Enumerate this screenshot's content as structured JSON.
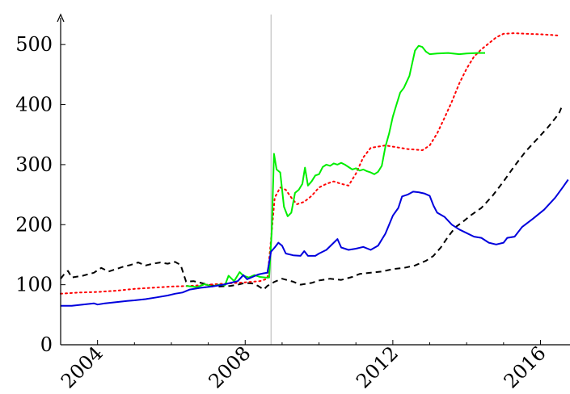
{
  "chart_data": {
    "type": "line",
    "title": "",
    "xlabel": "",
    "ylabel": "",
    "xlim": [
      2003.0,
      2016.8
    ],
    "ylim": [
      0,
      550
    ],
    "x_ticks": [
      2004,
      2008,
      2012,
      2016
    ],
    "y_ticks": [
      0,
      100,
      200,
      300,
      400,
      500
    ],
    "grid": false,
    "reference_line_x": 2008.7,
    "series": [
      {
        "color": "#000000",
        "style": "dashed",
        "points": [
          [
            2003.0,
            110
          ],
          [
            2003.1,
            118
          ],
          [
            2003.2,
            123
          ],
          [
            2003.3,
            112
          ],
          [
            2003.6,
            115
          ],
          [
            2003.9,
            120
          ],
          [
            2004.1,
            128
          ],
          [
            2004.3,
            122
          ],
          [
            2004.5,
            126
          ],
          [
            2004.7,
            130
          ],
          [
            2004.9,
            133
          ],
          [
            2005.1,
            137
          ],
          [
            2005.3,
            132
          ],
          [
            2005.5,
            135
          ],
          [
            2005.7,
            137
          ],
          [
            2005.9,
            135
          ],
          [
            2006.1,
            138
          ],
          [
            2006.25,
            133
          ],
          [
            2006.4,
            105
          ],
          [
            2006.6,
            106
          ],
          [
            2006.8,
            103
          ],
          [
            2007.0,
            100
          ],
          [
            2007.3,
            97
          ],
          [
            2007.6,
            98
          ],
          [
            2007.8,
            100
          ],
          [
            2008.0,
            103
          ],
          [
            2008.2,
            102
          ],
          [
            2008.35,
            98
          ],
          [
            2008.5,
            92
          ],
          [
            2008.6,
            98
          ],
          [
            2008.8,
            105
          ],
          [
            2009.0,
            110
          ],
          [
            2009.3,
            105
          ],
          [
            2009.5,
            100
          ],
          [
            2009.8,
            103
          ],
          [
            2010.0,
            107
          ],
          [
            2010.3,
            110
          ],
          [
            2010.6,
            108
          ],
          [
            2010.9,
            113
          ],
          [
            2011.1,
            118
          ],
          [
            2011.4,
            120
          ],
          [
            2011.7,
            122
          ],
          [
            2012.0,
            126
          ],
          [
            2012.3,
            128
          ],
          [
            2012.6,
            132
          ],
          [
            2012.9,
            140
          ],
          [
            2013.1,
            148
          ],
          [
            2013.3,
            162
          ],
          [
            2013.5,
            180
          ],
          [
            2013.7,
            196
          ],
          [
            2013.9,
            205
          ],
          [
            2014.1,
            215
          ],
          [
            2014.4,
            228
          ],
          [
            2014.7,
            248
          ],
          [
            2015.0,
            272
          ],
          [
            2015.3,
            298
          ],
          [
            2015.6,
            322
          ],
          [
            2015.9,
            342
          ],
          [
            2016.2,
            362
          ],
          [
            2016.5,
            385
          ],
          [
            2016.6,
            400
          ]
        ]
      },
      {
        "color": "#ff0000",
        "style": "dotted",
        "points": [
          [
            2003.0,
            85
          ],
          [
            2003.5,
            87
          ],
          [
            2004.0,
            88
          ],
          [
            2004.5,
            90
          ],
          [
            2005.0,
            93
          ],
          [
            2005.5,
            95
          ],
          [
            2006.0,
            97
          ],
          [
            2006.5,
            98
          ],
          [
            2007.0,
            100
          ],
          [
            2007.5,
            102
          ],
          [
            2008.0,
            104
          ],
          [
            2008.4,
            106
          ],
          [
            2008.6,
            110
          ],
          [
            2008.7,
            175
          ],
          [
            2008.8,
            245
          ],
          [
            2008.95,
            262
          ],
          [
            2009.1,
            258
          ],
          [
            2009.25,
            245
          ],
          [
            2009.4,
            234
          ],
          [
            2009.6,
            238
          ],
          [
            2009.8,
            248
          ],
          [
            2010.0,
            262
          ],
          [
            2010.2,
            268
          ],
          [
            2010.4,
            272
          ],
          [
            2010.6,
            268
          ],
          [
            2010.8,
            265
          ],
          [
            2011.0,
            285
          ],
          [
            2011.2,
            312
          ],
          [
            2011.4,
            328
          ],
          [
            2011.6,
            330
          ],
          [
            2011.8,
            332
          ],
          [
            2012.0,
            330
          ],
          [
            2012.2,
            328
          ],
          [
            2012.4,
            326
          ],
          [
            2012.6,
            325
          ],
          [
            2012.8,
            324
          ],
          [
            2013.0,
            332
          ],
          [
            2013.2,
            352
          ],
          [
            2013.4,
            378
          ],
          [
            2013.6,
            405
          ],
          [
            2013.8,
            435
          ],
          [
            2014.0,
            460
          ],
          [
            2014.2,
            480
          ],
          [
            2014.4,
            492
          ],
          [
            2014.6,
            502
          ],
          [
            2014.8,
            512
          ],
          [
            2015.0,
            518
          ],
          [
            2015.3,
            519
          ],
          [
            2015.6,
            518
          ],
          [
            2016.0,
            517
          ],
          [
            2016.3,
            516
          ],
          [
            2016.5,
            515
          ]
        ]
      },
      {
        "color": "#00ee00",
        "style": "solid",
        "points": [
          [
            2006.4,
            98
          ],
          [
            2006.7,
            96
          ],
          [
            2006.9,
            101
          ],
          [
            2007.1,
            97
          ],
          [
            2007.3,
            100
          ],
          [
            2007.45,
            99
          ],
          [
            2007.55,
            115
          ],
          [
            2007.7,
            106
          ],
          [
            2007.85,
            121
          ],
          [
            2007.95,
            115
          ],
          [
            2008.1,
            112
          ],
          [
            2008.25,
            116
          ],
          [
            2008.4,
            113
          ],
          [
            2008.55,
            112
          ],
          [
            2008.65,
            112
          ],
          [
            2008.72,
            190
          ],
          [
            2008.78,
            318
          ],
          [
            2008.85,
            292
          ],
          [
            2008.95,
            287
          ],
          [
            2009.05,
            230
          ],
          [
            2009.15,
            214
          ],
          [
            2009.25,
            220
          ],
          [
            2009.35,
            253
          ],
          [
            2009.45,
            258
          ],
          [
            2009.55,
            268
          ],
          [
            2009.62,
            295
          ],
          [
            2009.7,
            265
          ],
          [
            2009.8,
            272
          ],
          [
            2009.9,
            282
          ],
          [
            2010.0,
            284
          ],
          [
            2010.1,
            296
          ],
          [
            2010.2,
            300
          ],
          [
            2010.3,
            298
          ],
          [
            2010.4,
            302
          ],
          [
            2010.5,
            300
          ],
          [
            2010.6,
            303
          ],
          [
            2010.7,
            300
          ],
          [
            2010.8,
            296
          ],
          [
            2010.9,
            292
          ],
          [
            2011.0,
            294
          ],
          [
            2011.1,
            290
          ],
          [
            2011.2,
            292
          ],
          [
            2011.3,
            289
          ],
          [
            2011.4,
            287
          ],
          [
            2011.5,
            284
          ],
          [
            2011.6,
            288
          ],
          [
            2011.7,
            298
          ],
          [
            2011.8,
            330
          ],
          [
            2011.9,
            352
          ],
          [
            2012.0,
            380
          ],
          [
            2012.1,
            400
          ],
          [
            2012.2,
            420
          ],
          [
            2012.3,
            428
          ],
          [
            2012.45,
            448
          ],
          [
            2012.6,
            490
          ],
          [
            2012.7,
            498
          ],
          [
            2012.8,
            496
          ],
          [
            2012.9,
            488
          ],
          [
            2013.0,
            484
          ],
          [
            2013.2,
            485
          ],
          [
            2013.5,
            486
          ],
          [
            2013.8,
            484
          ],
          [
            2014.0,
            485
          ],
          [
            2014.3,
            486
          ],
          [
            2014.5,
            486
          ]
        ]
      },
      {
        "color": "#0000dd",
        "style": "solid",
        "points": [
          [
            2003.0,
            65
          ],
          [
            2003.3,
            65
          ],
          [
            2003.6,
            67
          ],
          [
            2003.9,
            69
          ],
          [
            2004.0,
            67
          ],
          [
            2004.2,
            69
          ],
          [
            2004.5,
            71
          ],
          [
            2004.8,
            73
          ],
          [
            2005.0,
            74
          ],
          [
            2005.3,
            76
          ],
          [
            2005.6,
            79
          ],
          [
            2005.9,
            82
          ],
          [
            2006.1,
            85
          ],
          [
            2006.3,
            87
          ],
          [
            2006.5,
            92
          ],
          [
            2006.8,
            95
          ],
          [
            2007.1,
            97
          ],
          [
            2007.4,
            100
          ],
          [
            2007.6,
            103
          ],
          [
            2007.8,
            106
          ],
          [
            2007.95,
            116
          ],
          [
            2008.05,
            109
          ],
          [
            2008.2,
            113
          ],
          [
            2008.35,
            117
          ],
          [
            2008.5,
            119
          ],
          [
            2008.6,
            120
          ],
          [
            2008.7,
            155
          ],
          [
            2008.8,
            162
          ],
          [
            2008.9,
            170
          ],
          [
            2009.0,
            165
          ],
          [
            2009.1,
            152
          ],
          [
            2009.3,
            149
          ],
          [
            2009.5,
            148
          ],
          [
            2009.6,
            156
          ],
          [
            2009.7,
            148
          ],
          [
            2009.9,
            148
          ],
          [
            2010.0,
            152
          ],
          [
            2010.2,
            158
          ],
          [
            2010.4,
            170
          ],
          [
            2010.5,
            176
          ],
          [
            2010.6,
            162
          ],
          [
            2010.8,
            158
          ],
          [
            2011.0,
            160
          ],
          [
            2011.2,
            163
          ],
          [
            2011.4,
            158
          ],
          [
            2011.6,
            165
          ],
          [
            2011.8,
            185
          ],
          [
            2012.0,
            215
          ],
          [
            2012.15,
            228
          ],
          [
            2012.25,
            247
          ],
          [
            2012.4,
            250
          ],
          [
            2012.55,
            255
          ],
          [
            2012.7,
            254
          ],
          [
            2012.85,
            252
          ],
          [
            2013.0,
            248
          ],
          [
            2013.1,
            232
          ],
          [
            2013.2,
            220
          ],
          [
            2013.4,
            213
          ],
          [
            2013.6,
            200
          ],
          [
            2013.8,
            192
          ],
          [
            2014.0,
            186
          ],
          [
            2014.2,
            180
          ],
          [
            2014.4,
            178
          ],
          [
            2014.6,
            170
          ],
          [
            2014.8,
            167
          ],
          [
            2015.0,
            170
          ],
          [
            2015.1,
            178
          ],
          [
            2015.3,
            180
          ],
          [
            2015.5,
            196
          ],
          [
            2015.8,
            210
          ],
          [
            2016.1,
            225
          ],
          [
            2016.4,
            245
          ],
          [
            2016.6,
            262
          ],
          [
            2016.75,
            275
          ]
        ]
      }
    ]
  }
}
